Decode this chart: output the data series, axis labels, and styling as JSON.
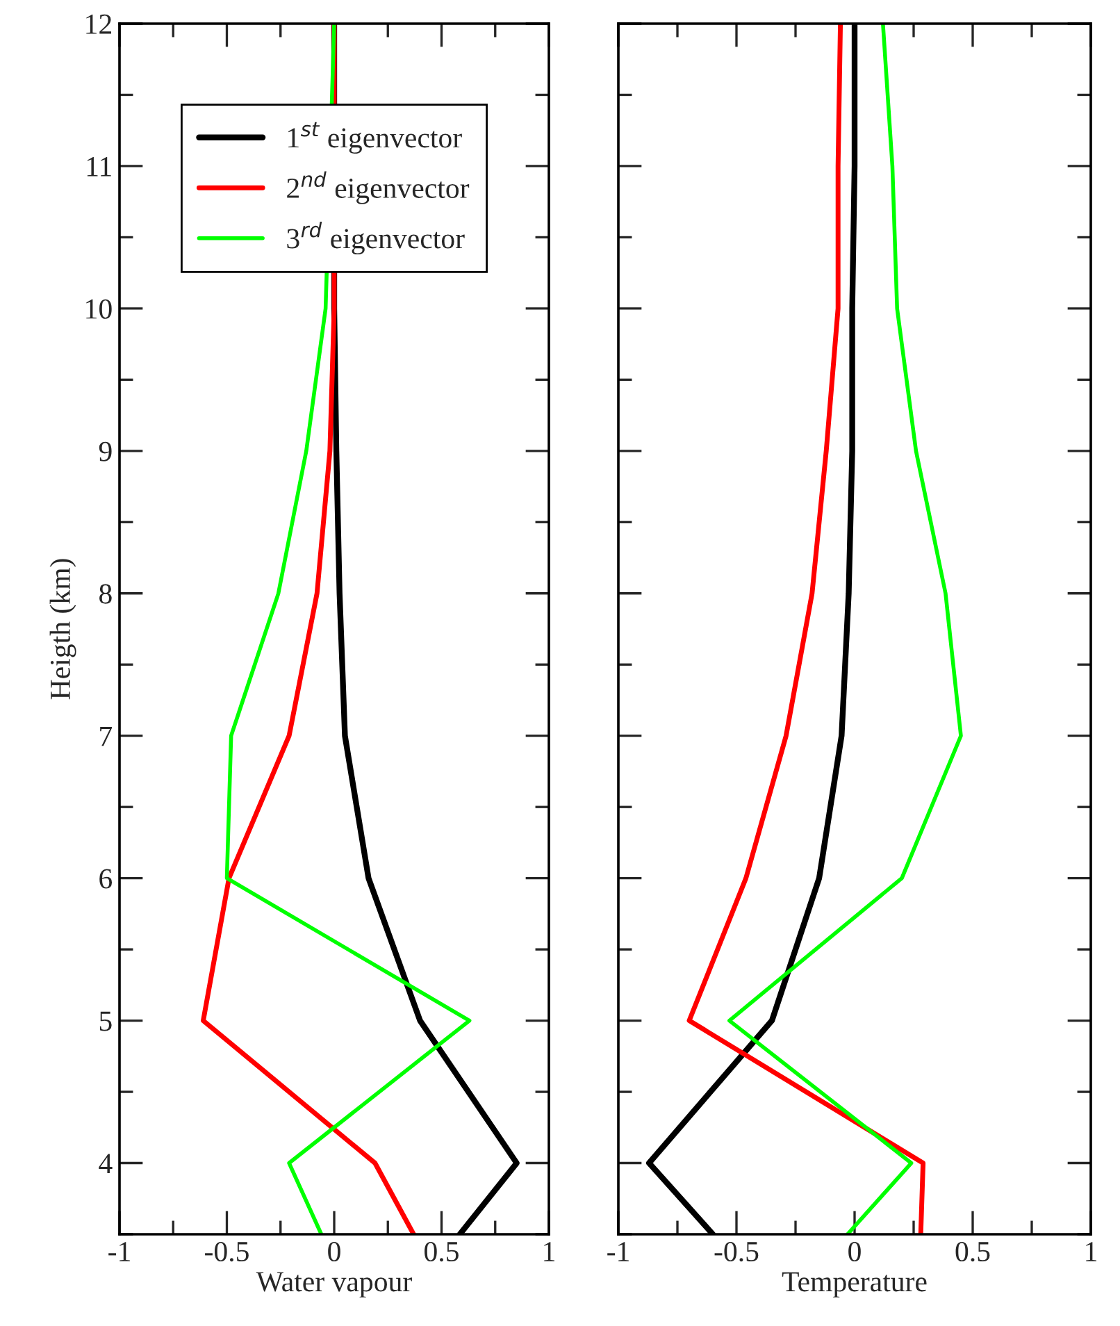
{
  "chart_data": [
    {
      "type": "line",
      "xlabel": "Water vapour",
      "ylabel": "Heigth (km)",
      "xlim": [
        -1,
        1
      ],
      "xticks": [
        -1,
        -0.5,
        0,
        0.5,
        1
      ],
      "ylim": [
        3.5,
        12
      ],
      "yticks": [
        4,
        5,
        6,
        7,
        8,
        9,
        10,
        11,
        12
      ],
      "legend": "top",
      "marker": "none",
      "line_style": "solid",
      "series": [
        {
          "name": "1$^{st}$ eigenvector",
          "color": "#000000",
          "x": [
            0,
            0,
            0.01,
            0.025,
            0.05,
            0.16,
            0.4,
            0.85,
            0.585
          ],
          "values": [
            12,
            10,
            9,
            8,
            7,
            6,
            5,
            4,
            3.5
          ]
        },
        {
          "name": "2$^{nd}$ eigenvector",
          "color": "#ff0000",
          "x": [
            0,
            0,
            -0.02,
            -0.08,
            -0.21,
            -0.49,
            -0.61,
            0.19,
            0.37
          ],
          "values": [
            12,
            10,
            9,
            8,
            7,
            6,
            5,
            4,
            3.5
          ]
        },
        {
          "name": "3$^{rd}$ eigenvector",
          "color": "#00ff00",
          "x": [
            0,
            -0.04,
            -0.13,
            -0.26,
            -0.48,
            -0.5,
            0.63,
            -0.21,
            -0.06
          ],
          "values": [
            12,
            10,
            9,
            8,
            7,
            6,
            5,
            4,
            3.5
          ]
        }
      ]
    },
    {
      "type": "line",
      "xlabel": "Temperature",
      "xlim": [
        -1,
        1
      ],
      "xticks": [
        -1,
        -0.5,
        0,
        0.5,
        1
      ],
      "ylim": [
        3.5,
        12
      ],
      "yticks": [
        4,
        5,
        6,
        7,
        8,
        9,
        10,
        11,
        12
      ],
      "tick_labels": "x",
      "marker": "none",
      "line_style": "solid",
      "series": [
        {
          "color": "#000000",
          "x": [
            0,
            0,
            -0.01,
            -0.01,
            -0.025,
            -0.055,
            -0.15,
            -0.35,
            -0.87,
            -0.6
          ],
          "values": [
            12,
            11,
            10,
            9,
            8,
            7,
            6,
            5,
            4,
            3.5
          ]
        },
        {
          "color": "#ff0000",
          "x": [
            -0.06,
            -0.07,
            -0.07,
            -0.12,
            -0.18,
            -0.29,
            -0.46,
            -0.7,
            0.29,
            0.28
          ],
          "values": [
            12,
            11,
            10,
            9,
            8,
            7,
            6,
            5,
            4,
            3.5
          ]
        },
        {
          "color": "#00ff00",
          "x": [
            0.12,
            0.16,
            0.18,
            0.26,
            0.385,
            0.45,
            0.2,
            -0.53,
            0.24,
            -0.03
          ],
          "values": [
            12,
            11,
            10,
            9,
            8,
            7,
            6,
            5,
            4,
            3.5
          ]
        }
      ]
    }
  ]
}
